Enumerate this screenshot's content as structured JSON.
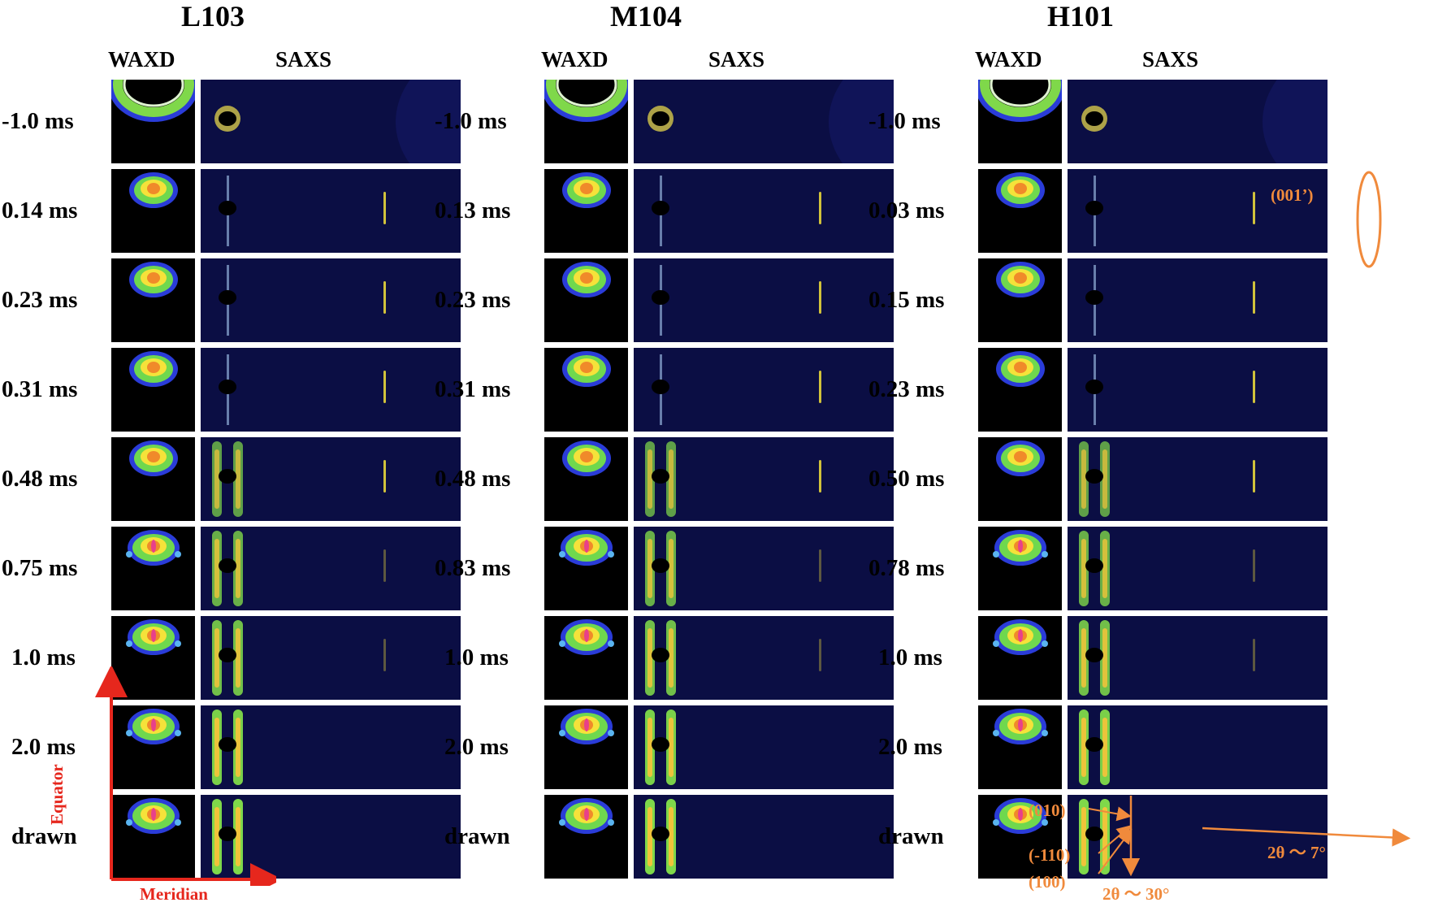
{
  "samples": [
    {
      "name": "L103",
      "times": [
        "-1.0 ms",
        "0.14 ms",
        "0.23 ms",
        "0.31 ms",
        "0.48 ms",
        "0.75 ms",
        "1.0 ms",
        "2.0 ms",
        "drawn"
      ]
    },
    {
      "name": "M104",
      "times": [
        "-1.0 ms",
        "0.13 ms",
        "0.23 ms",
        "0.31 ms",
        "0.48 ms",
        "0.83 ms",
        "1.0 ms",
        "2.0 ms",
        "drawn"
      ]
    },
    {
      "name": "H101",
      "times": [
        "-1.0 ms",
        "0.03 ms",
        "0.15 ms",
        "0.23 ms",
        "0.50 ms",
        "0.78 ms",
        "1.0 ms",
        "2.0 ms",
        "drawn"
      ]
    }
  ],
  "headers": {
    "waxd": "WAXD",
    "saxs": "SAXS"
  },
  "axes": {
    "equator": "Equator",
    "meridian": "Meridian"
  },
  "annotations": {
    "peak_001": "(001’)",
    "peak_010": "(010)",
    "peak_m110": "(-110)",
    "peak_100": "(100)",
    "saxs_angle": "2θ ～ 7°",
    "waxd_angle": "2θ ～ 30°"
  },
  "colors": {
    "annotation": "#f08a3c",
    "axis_arrow": "#e6271d",
    "saxs_background": "#0a0c3a"
  }
}
